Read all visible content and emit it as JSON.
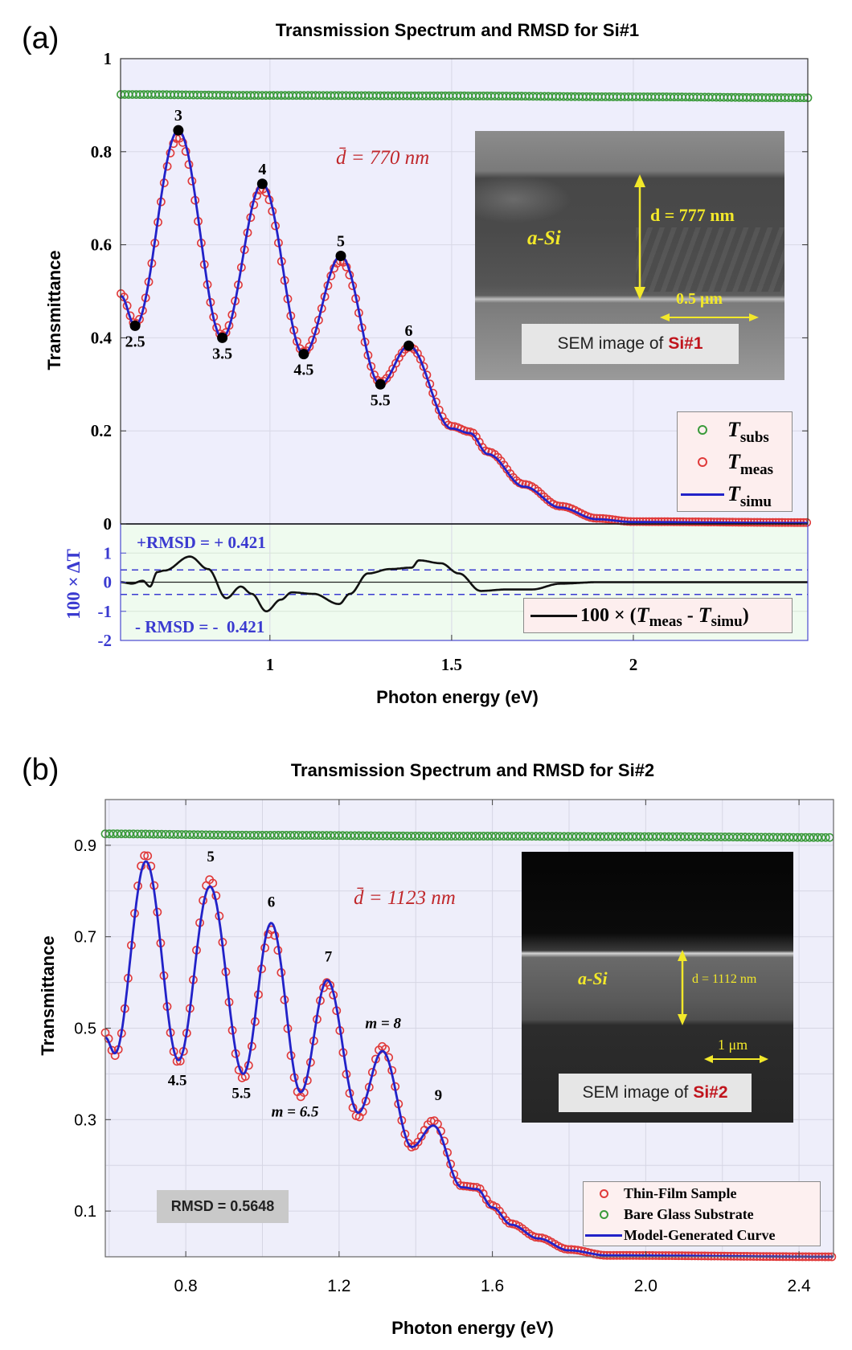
{
  "colors": {
    "meas": "#e03a3a",
    "simu": "#2222c8",
    "subs": "#3a9a3a",
    "resid": "#111111",
    "rmsd": "#3a3ad0",
    "annot_red": "#c0282c",
    "bg_a": "#eeeefc",
    "bg_resid": "#effbef",
    "bg_b": "#eeeefa"
  },
  "chart_data": [
    {
      "type": "line",
      "panel_label": "(a)",
      "title": "Transmission Spectrum and RMSD for Si#1",
      "xlabel": "Photon energy (eV)",
      "ylabel": "Transmittance",
      "xlim": [
        0.589,
        2.48
      ],
      "ylim": [
        0,
        1
      ],
      "xticks": [
        1,
        1.5,
        2
      ],
      "xtick_labels": [
        "1",
        "1.5",
        "2"
      ],
      "yticks": [
        0,
        0.2,
        0.4,
        0.6,
        0.8,
        1
      ],
      "ytick_labels": [
        "0",
        "0.2",
        "0.4",
        "0.6",
        "0.8",
        "1"
      ],
      "grid": true,
      "thickness_label": "d̄ = 770 nm",
      "series": {
        "T_subs": [
          [
            0.59,
            0.923
          ],
          [
            1.0,
            0.921
          ],
          [
            1.5,
            0.92
          ],
          [
            2.0,
            0.918
          ],
          [
            2.48,
            0.916
          ]
        ],
        "T_meas": [
          [
            0.59,
            0.495
          ],
          [
            0.629,
            0.43
          ],
          [
            0.748,
            0.83
          ],
          [
            0.869,
            0.405
          ],
          [
            0.979,
            0.72
          ],
          [
            1.093,
            0.37
          ],
          [
            1.195,
            0.565
          ],
          [
            1.304,
            0.305
          ],
          [
            1.385,
            0.38
          ],
          [
            1.5,
            0.21
          ],
          [
            1.551,
            0.198
          ],
          [
            1.6,
            0.155
          ],
          [
            1.7,
            0.085
          ],
          [
            1.8,
            0.038
          ],
          [
            1.9,
            0.012
          ],
          [
            2.0,
            0.005
          ],
          [
            2.48,
            0.003
          ]
        ],
        "T_simu": [
          [
            0.59,
            0.49
          ],
          [
            0.629,
            0.426
          ],
          [
            0.748,
            0.846
          ],
          [
            0.869,
            0.4
          ],
          [
            0.979,
            0.731
          ],
          [
            1.093,
            0.365
          ],
          [
            1.195,
            0.576
          ],
          [
            1.304,
            0.3
          ],
          [
            1.382,
            0.383
          ],
          [
            1.5,
            0.205
          ],
          [
            1.551,
            0.195
          ],
          [
            1.6,
            0.15
          ],
          [
            1.7,
            0.08
          ],
          [
            1.8,
            0.035
          ],
          [
            1.9,
            0.01
          ],
          [
            2.0,
            0.004
          ],
          [
            2.48,
            0.002
          ]
        ]
      },
      "extrema_points": [
        {
          "text": "2.5",
          "x": 0.629,
          "y": 0.426,
          "pos": "below"
        },
        {
          "text": "3",
          "x": 0.748,
          "y": 0.846,
          "pos": "above"
        },
        {
          "text": "3.5",
          "x": 0.869,
          "y": 0.4,
          "pos": "below"
        },
        {
          "text": "4",
          "x": 0.979,
          "y": 0.731,
          "pos": "above"
        },
        {
          "text": "4.5",
          "x": 1.093,
          "y": 0.365,
          "pos": "below"
        },
        {
          "text": "5",
          "x": 1.195,
          "y": 0.576,
          "pos": "above"
        },
        {
          "text": "5.5",
          "x": 1.304,
          "y": 0.3,
          "pos": "below"
        },
        {
          "text": "6",
          "x": 1.382,
          "y": 0.383,
          "pos": "above"
        }
      ],
      "legend": [
        {
          "symbol": "T",
          "sub": "subs",
          "series": "T_subs"
        },
        {
          "symbol": "T",
          "sub": "meas",
          "series": "T_meas"
        },
        {
          "symbol": "T",
          "sub": "simu",
          "series": "T_simu"
        }
      ],
      "legend_placement": "bottom-right",
      "inset": {
        "material": "a-Si",
        "thickness": "d = 777 nm",
        "scale_bar": "0.5 μm",
        "caption": "SEM image of",
        "sample": "Si#1"
      },
      "residual": {
        "ylabel": "100 × ΔT",
        "ylim": [
          -2,
          2
        ],
        "yticks": [
          -2,
          -1,
          0,
          1
        ],
        "ytick_labels": [
          "-2",
          "-1",
          "0",
          "1"
        ],
        "rmsd": 0.421,
        "plus_label": "+RMSD = + 0.421",
        "minus_label": "- RMSD = -  0.421",
        "legend": {
          "prefix": "100 × (",
          "T1": "T",
          "sub1": "meas",
          "minus": " - ",
          "T2": "T",
          "sub2": "simu",
          "suffix": ")"
        },
        "values": [
          [
            0.59,
            0
          ],
          [
            0.62,
            -0.05
          ],
          [
            0.65,
            0.05
          ],
          [
            0.67,
            -0.15
          ],
          [
            0.69,
            0.35
          ],
          [
            0.71,
            0.4
          ],
          [
            0.78,
            0.88
          ],
          [
            0.83,
            0.45
          ],
          [
            0.88,
            -0.55
          ],
          [
            0.92,
            -0.15
          ],
          [
            0.95,
            -0.4
          ],
          [
            0.99,
            -1.0
          ],
          [
            1.03,
            -0.6
          ],
          [
            1.06,
            -0.35
          ],
          [
            1.12,
            -0.4
          ],
          [
            1.19,
            -0.75
          ],
          [
            1.22,
            -0.4
          ],
          [
            1.27,
            0.3
          ],
          [
            1.33,
            0.45
          ],
          [
            1.39,
            0.5
          ],
          [
            1.41,
            0.75
          ],
          [
            1.47,
            0.65
          ],
          [
            1.52,
            0.3
          ],
          [
            1.58,
            -0.3
          ],
          [
            1.65,
            -0.25
          ],
          [
            1.72,
            -0.25
          ],
          [
            1.8,
            -0.05
          ],
          [
            1.9,
            0
          ],
          [
            2.48,
            0
          ]
        ]
      }
    },
    {
      "type": "line",
      "panel_label": "(b)",
      "title": "Transmission Spectrum and RMSD for Si#2",
      "xlabel": "Photon energy (eV)",
      "ylabel": "Transmittance",
      "xlim": [
        0.59,
        2.49
      ],
      "ylim": [
        0,
        1
      ],
      "xticks": [
        0.8,
        1.2,
        1.6,
        2.0,
        2.4
      ],
      "xtick_labels": [
        "0.8",
        "1.2",
        "1.6",
        "2.0",
        "2.4"
      ],
      "yticks": [
        0.1,
        0.3,
        0.5,
        0.7,
        0.9
      ],
      "ytick_labels": [
        "0.1",
        "0.3",
        "0.5",
        "0.7",
        "0.9"
      ],
      "grid": true,
      "thickness_label": "d̄ = 1123 nm",
      "rmsd_label": "RMSD = 0.5648",
      "series": {
        "T_subs": [
          [
            0.59,
            0.925
          ],
          [
            1.0,
            0.922
          ],
          [
            1.5,
            0.92
          ],
          [
            2.0,
            0.919
          ],
          [
            2.49,
            0.917
          ]
        ],
        "T_meas": [
          [
            0.59,
            0.49
          ],
          [
            0.615,
            0.44
          ],
          [
            0.696,
            0.88
          ],
          [
            0.781,
            0.425
          ],
          [
            0.863,
            0.825
          ],
          [
            0.95,
            0.39
          ],
          [
            1.023,
            0.715
          ],
          [
            1.1,
            0.35
          ],
          [
            1.169,
            0.6
          ],
          [
            1.25,
            0.305
          ],
          [
            1.313,
            0.46
          ],
          [
            1.39,
            0.24
          ],
          [
            1.446,
            0.298
          ],
          [
            1.52,
            0.155
          ],
          [
            1.56,
            0.152
          ],
          [
            1.6,
            0.112
          ],
          [
            1.65,
            0.072
          ],
          [
            1.72,
            0.042
          ],
          [
            1.8,
            0.016
          ],
          [
            1.9,
            0.003
          ],
          [
            2.49,
            0.0
          ]
        ],
        "T_simu": [
          [
            0.59,
            0.48
          ],
          [
            0.615,
            0.445
          ],
          [
            0.696,
            0.865
          ],
          [
            0.781,
            0.43
          ],
          [
            0.863,
            0.81
          ],
          [
            0.95,
            0.4
          ],
          [
            1.023,
            0.73
          ],
          [
            1.1,
            0.36
          ],
          [
            1.169,
            0.605
          ],
          [
            1.25,
            0.315
          ],
          [
            1.313,
            0.45
          ],
          [
            1.39,
            0.24
          ],
          [
            1.446,
            0.287
          ],
          [
            1.52,
            0.152
          ],
          [
            1.56,
            0.148
          ],
          [
            1.6,
            0.108
          ],
          [
            1.65,
            0.07
          ],
          [
            1.72,
            0.04
          ],
          [
            1.8,
            0.014
          ],
          [
            1.9,
            0.003
          ],
          [
            2.49,
            0.0
          ]
        ]
      },
      "annotations": [
        {
          "text": "5",
          "x": 0.865,
          "y": 0.865
        },
        {
          "text": "6",
          "x": 1.023,
          "y": 0.765
        },
        {
          "text": "7",
          "x": 1.172,
          "y": 0.646
        },
        {
          "text": "m = 8",
          "x": 1.315,
          "y": 0.5
        },
        {
          "text": "9",
          "x": 1.459,
          "y": 0.343
        },
        {
          "text": "4.5",
          "x": 0.778,
          "y": 0.375
        },
        {
          "text": "5.5",
          "x": 0.945,
          "y": 0.347
        },
        {
          "text": "m = 6.5",
          "x": 1.085,
          "y": 0.307
        }
      ],
      "legend": [
        {
          "label": "Thin-Film Sample",
          "series": "T_meas"
        },
        {
          "label": "Bare Glass Substrate",
          "series": "T_subs"
        },
        {
          "label": "Model-Generated Curve",
          "series": "T_simu"
        }
      ],
      "legend_placement": "bottom-right",
      "inset": {
        "material": "a-Si",
        "thickness": "d = 1112 nm",
        "scale_bar": "1 μm",
        "caption": "SEM image of",
        "sample": "Si#2"
      }
    }
  ]
}
